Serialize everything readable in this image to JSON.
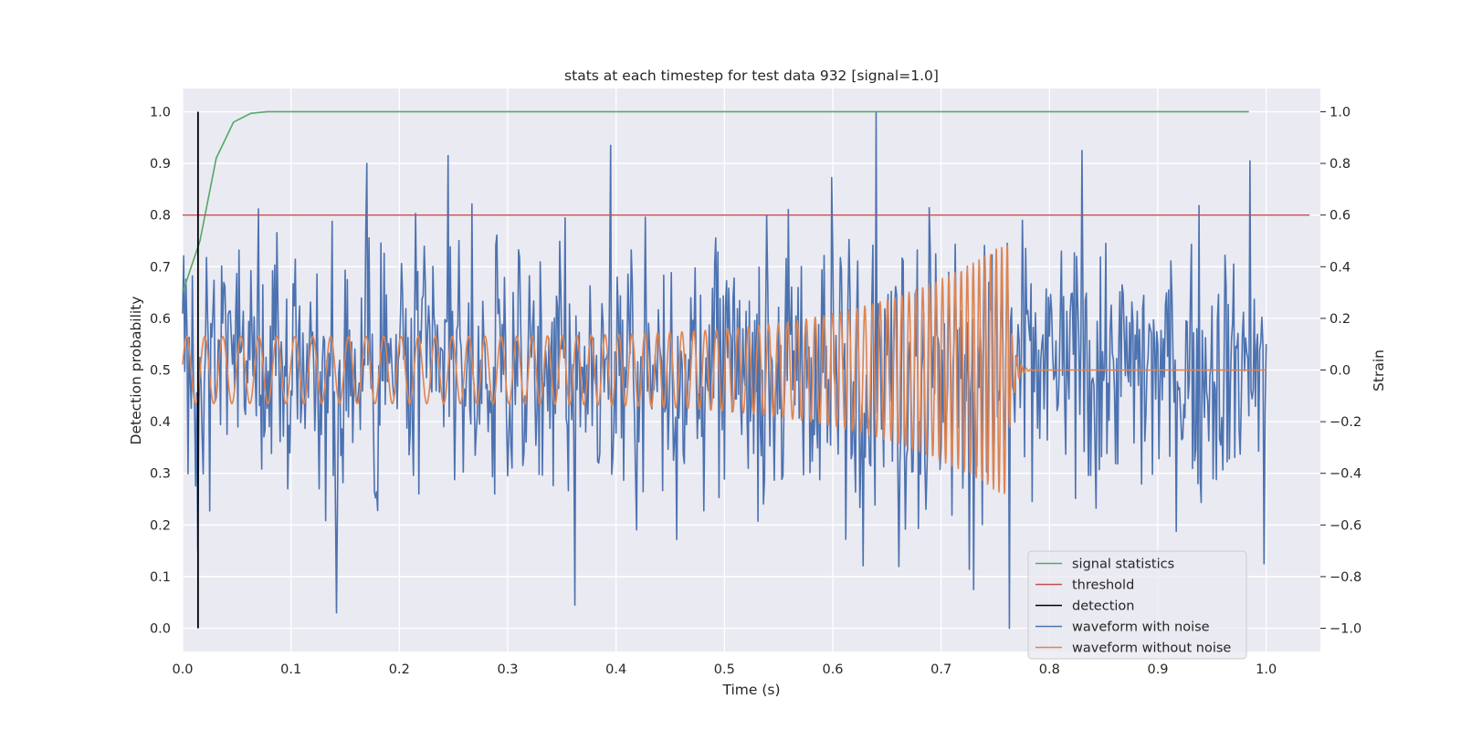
{
  "chart_data": {
    "type": "line",
    "title": "stats at each timestep for test data 932 [signal=1.0]",
    "xlabel": "Time (s)",
    "ylabel_left": "Detection probability",
    "ylabel_right": "Strain",
    "xlim": [
      0.0,
      1.05
    ],
    "ylim_left": [
      -0.045,
      1.045
    ],
    "ylim_right": [
      -1.09,
      1.09
    ],
    "x_ticks": [
      0.0,
      0.1,
      0.2,
      0.3,
      0.4,
      0.5,
      0.6,
      0.7,
      0.8,
      0.9,
      1.0
    ],
    "x_tick_labels": [
      "0.0",
      "0.1",
      "0.2",
      "0.3",
      "0.4",
      "0.5",
      "0.6",
      "0.7",
      "0.8",
      "0.9",
      "1.0"
    ],
    "y_left_ticks": [
      0.0,
      0.1,
      0.2,
      0.3,
      0.4,
      0.5,
      0.6,
      0.7,
      0.8,
      0.9,
      1.0
    ],
    "y_left_tick_labels": [
      "0.0",
      "0.1",
      "0.2",
      "0.3",
      "0.4",
      "0.5",
      "0.6",
      "0.7",
      "0.8",
      "0.9",
      "1.0"
    ],
    "y_right_ticks": [
      -1.0,
      -0.8,
      -0.6,
      -0.4,
      -0.2,
      0.0,
      0.2,
      0.4,
      0.6,
      0.8,
      1.0
    ],
    "y_right_tick_labels": [
      "−1.0",
      "−0.8",
      "−0.6",
      "−0.4",
      "−0.2",
      "0.0",
      "0.2",
      "0.4",
      "0.6",
      "0.8",
      "1.0"
    ],
    "grid": true,
    "legend_position": "lower-right",
    "signal_statistics": {
      "name": "signal statistics",
      "color": "#55a868",
      "axis": "left",
      "x": [
        0.0,
        0.016,
        0.031,
        0.047,
        0.063,
        0.078,
        0.1,
        0.2,
        0.3,
        0.4,
        0.5,
        0.6,
        0.7,
        0.8,
        0.9,
        0.984
      ],
      "y": [
        0.65,
        0.75,
        0.91,
        0.98,
        0.997,
        1.0,
        1.0,
        1.0,
        1.0,
        1.0,
        1.0,
        1.0,
        1.0,
        1.0,
        1.0,
        1.0
      ]
    },
    "threshold": {
      "name": "threshold",
      "color": "#c44e52",
      "axis": "left",
      "value": 0.8,
      "x_range": [
        0.0,
        1.04
      ]
    },
    "detection": {
      "name": "detection",
      "color": "#000000",
      "axis": "left",
      "x": 0.0142,
      "y_range": [
        0.0,
        1.0
      ]
    },
    "waveform_with_noise": {
      "name": "waveform with noise",
      "color": "#4c72b0",
      "axis": "right",
      "x_range": [
        0.0,
        1.0
      ],
      "noise_amplitude": 0.36,
      "peaks": [
        {
          "x": 0.17,
          "y": 0.8
        },
        {
          "x": 0.245,
          "y": 0.83
        },
        {
          "x": 0.395,
          "y": 0.87
        },
        {
          "x": 0.64,
          "y": 1.0
        },
        {
          "x": 0.83,
          "y": 0.85
        },
        {
          "x": 0.985,
          "y": 0.81
        },
        {
          "x": 0.142,
          "y": -0.94
        },
        {
          "x": 0.362,
          "y": -0.91
        },
        {
          "x": 0.763,
          "y": -1.0
        },
        {
          "x": 0.73,
          "y": -0.85
        },
        {
          "x": 0.998,
          "y": -0.75
        },
        {
          "x": 0.014,
          "y": -0.7
        }
      ]
    },
    "waveform_without_noise": {
      "name": "waveform without noise",
      "color": "#dd8452",
      "axis": "right",
      "x_range": [
        0.0,
        1.0
      ],
      "amplitude_start": 0.13,
      "amplitude_peak": 0.5,
      "merger_time": 0.762,
      "frequency_start_hz": 60,
      "frequency_end_hz": 200
    },
    "legend": [
      "signal statistics",
      "threshold",
      "detection",
      "waveform with noise",
      "waveform without noise"
    ]
  }
}
